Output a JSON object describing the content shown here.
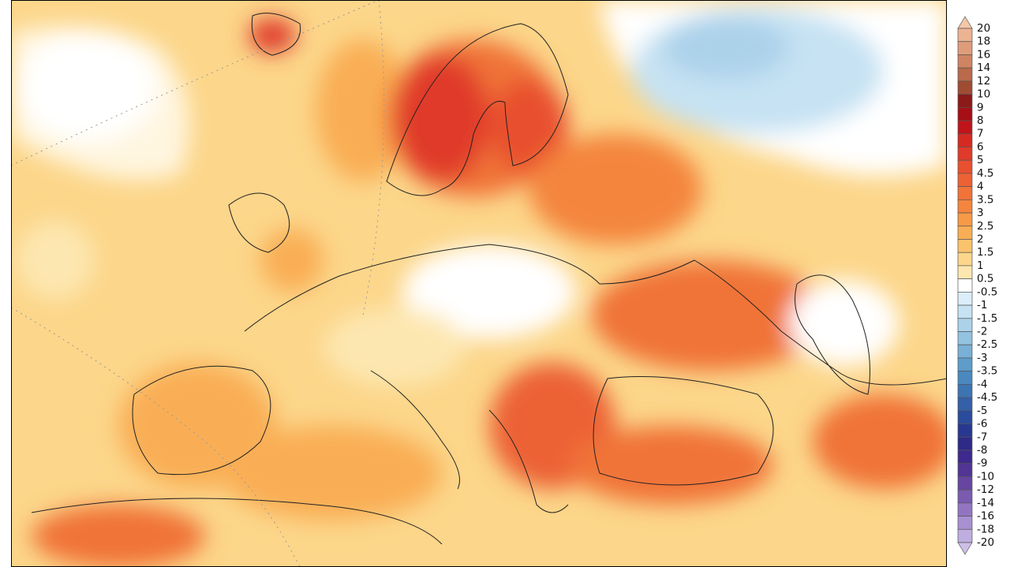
{
  "colorbar": {
    "labels": [
      "20",
      "18",
      "16",
      "14",
      "12",
      "10",
      "9",
      "8",
      "7",
      "6",
      "5",
      "4.5",
      "4",
      "3.5",
      "3",
      "2.5",
      "2",
      "1.5",
      "1",
      "0.5",
      "-0.5",
      "-1",
      "-1.5",
      "-2",
      "-2.5",
      "-3",
      "-3.5",
      "-4",
      "-4.5",
      "-5",
      "-6",
      "-7",
      "-8",
      "-9",
      "-10",
      "-12",
      "-14",
      "-16",
      "-18",
      "-20"
    ],
    "colors": [
      "#f3c7a8",
      "#ecb392",
      "#df9c7a",
      "#cf8462",
      "#b96a4a",
      "#a04c33",
      "#8b1a1a",
      "#a50f15",
      "#c0141b",
      "#d42a22",
      "#e03b2a",
      "#e8502f",
      "#ec6234",
      "#f07339",
      "#f4853e",
      "#f79a47",
      "#f9ae55",
      "#fbc36b",
      "#fcd68a",
      "#fde7b0",
      "#ffffff",
      "#dceefa",
      "#c6e2f3",
      "#acd2ea",
      "#93c2e1",
      "#79b0d6",
      "#5e9dca",
      "#4a89bf",
      "#3d74b3",
      "#3360a8",
      "#2b4b9c",
      "#283890",
      "#2e2a88",
      "#3e2a8c",
      "#523594",
      "#6646a0",
      "#7a5bb0",
      "#9275c2",
      "#a890d2",
      "#bfaee0",
      "#cdbfe8"
    ]
  }
}
